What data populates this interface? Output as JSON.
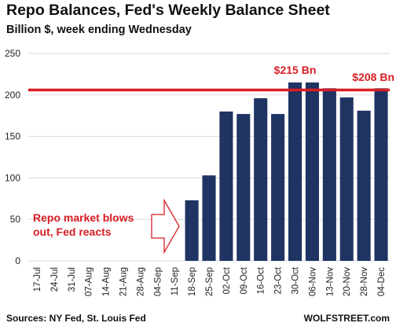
{
  "header": {
    "title": "Repo Balances, Fed's Weekly Balance Sheet",
    "subtitle": "Billion $, week ending Wednesday"
  },
  "footer": {
    "source": "Sources: NY Fed, St. Louis Fed",
    "brand": "WOLFSTREET.com"
  },
  "colors": {
    "bar": "#1f3462",
    "reference_line": "#d81e25",
    "annotation": "#d81e25",
    "grid": "#d9d9d9"
  },
  "chart_data": {
    "type": "bar",
    "categories": [
      "17-Jul",
      "24-Jul",
      "31-Jul",
      "07-Aug",
      "14-Aug",
      "21-Aug",
      "28-Aug",
      "04-Sep",
      "11-Sep",
      "18-Sep",
      "25-Sep",
      "02-Oct",
      "09-Oct",
      "16-Oct",
      "23-Oct",
      "30-Oct",
      "06-Nov",
      "13-Nov",
      "20-Nov",
      "28-Nov",
      "04-Dec"
    ],
    "values": [
      0,
      0,
      0,
      0,
      0,
      0,
      0,
      0,
      0,
      73,
      103,
      180,
      177,
      196,
      177,
      215,
      215,
      208,
      197,
      181,
      208
    ],
    "title": "Repo Balances, Fed's Weekly Balance Sheet",
    "subtitle": "Billion $, week ending Wednesday",
    "ylim": [
      0,
      250
    ],
    "yticks": [
      0,
      50,
      100,
      150,
      200,
      250
    ],
    "grid": true,
    "reference_line": {
      "y": 206
    },
    "annotations": {
      "peak_label": "$215 Bn",
      "last_label": "$208 Bn",
      "event_line1": "Repo market blows",
      "event_line2": "out, Fed reacts"
    }
  }
}
